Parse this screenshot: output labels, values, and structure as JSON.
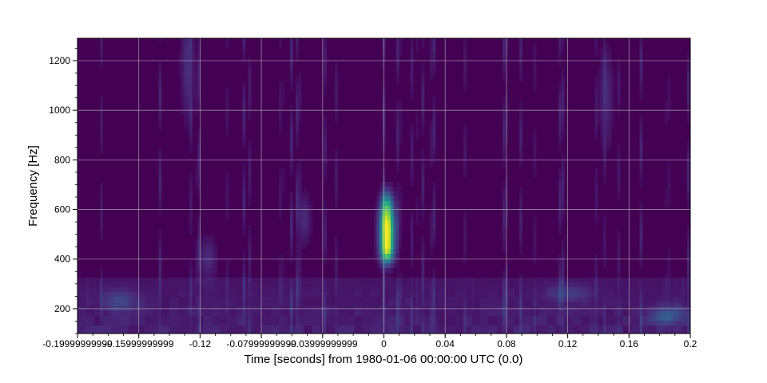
{
  "chart_data": {
    "type": "heatmap",
    "title": "",
    "xlabel": "Time [seconds] from 1980-01-06 00:00:00 UTC (0.0)",
    "ylabel": "Frequency [Hz]",
    "xlim": [
      -0.2,
      0.2
    ],
    "ylim": [
      100,
      1290
    ],
    "x_ticks": [
      {
        "value": -0.2,
        "label": "-0.19999999999"
      },
      {
        "value": -0.16,
        "label": "-0.15999999999"
      },
      {
        "value": -0.12,
        "label": "-0.12"
      },
      {
        "value": -0.08,
        "label": "-0.07999999999"
      },
      {
        "value": -0.04,
        "label": "-0.03999999999"
      },
      {
        "value": 0.0,
        "label": "0"
      },
      {
        "value": 0.04,
        "label": "0.04"
      },
      {
        "value": 0.08,
        "label": "0.08"
      },
      {
        "value": 0.12,
        "label": "0.12"
      },
      {
        "value": 0.16,
        "label": "0.16"
      },
      {
        "value": 0.2,
        "label": "0.2"
      }
    ],
    "y_ticks": [
      {
        "value": 200,
        "label": "200"
      },
      {
        "value": 400,
        "label": "400"
      },
      {
        "value": 600,
        "label": "600"
      },
      {
        "value": 800,
        "label": "800"
      },
      {
        "value": 1000,
        "label": "1000"
      },
      {
        "value": 1200,
        "label": "1200"
      }
    ],
    "grid": true,
    "colormap": "viridis",
    "background_color": "#440154",
    "grid_color": "#b4b4b4",
    "blobs": [
      {
        "t": 0.002,
        "f": 520,
        "dt": 0.0032,
        "df": 65,
        "intensity": 1.0
      },
      {
        "t": 0.002,
        "f": 430,
        "dt": 0.003,
        "df": 35,
        "intensity": 0.55
      },
      {
        "t": 0.002,
        "f": 620,
        "dt": 0.0028,
        "df": 40,
        "intensity": 0.35
      },
      {
        "t": 0.185,
        "f": 175,
        "dt": 0.008,
        "df": 25,
        "intensity": 0.22
      },
      {
        "t": -0.172,
        "f": 230,
        "dt": 0.008,
        "df": 30,
        "intensity": 0.15
      },
      {
        "t": -0.115,
        "f": 400,
        "dt": 0.004,
        "df": 60,
        "intensity": 0.12
      },
      {
        "t": -0.052,
        "f": 560,
        "dt": 0.003,
        "df": 70,
        "intensity": 0.12
      },
      {
        "t": 0.12,
        "f": 260,
        "dt": 0.01,
        "df": 25,
        "intensity": 0.12
      },
      {
        "t": -0.128,
        "f": 1180,
        "dt": 0.003,
        "df": 150,
        "intensity": 0.13
      },
      {
        "t": 0.145,
        "f": 1050,
        "dt": 0.003,
        "df": 130,
        "intensity": 0.12
      }
    ]
  }
}
